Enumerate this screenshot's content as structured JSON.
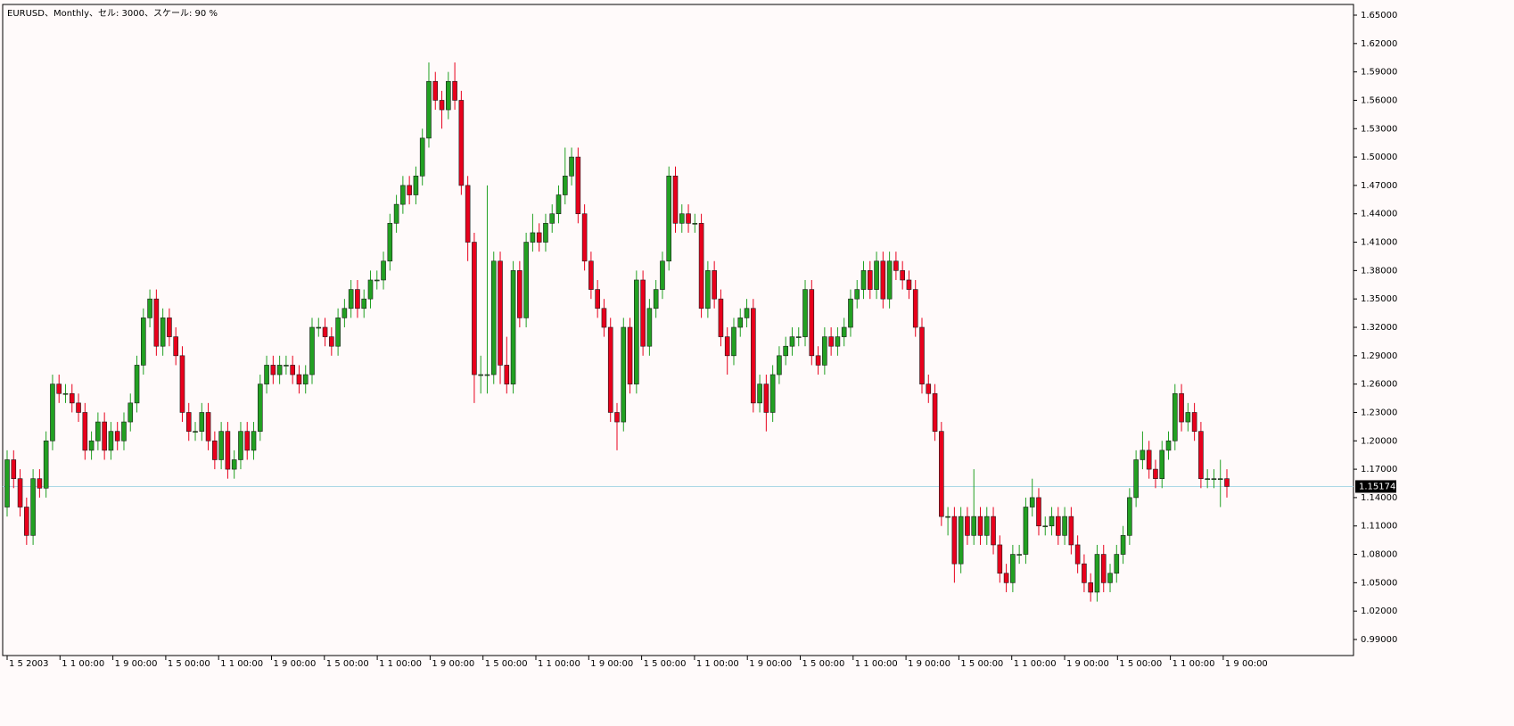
{
  "chart_data": {
    "type": "candlestick",
    "title": "EURUSD、Monthly、セル: 3000、スケール: 90 %",
    "bull_color": "#22a022",
    "bear_color": "#e8001c",
    "current_price": 1.15174,
    "current_price_label": "1.15174",
    "ylim": [
      0.99,
      1.65
    ],
    "yticks": [
      {
        "value": 0.99,
        "label": "0.99000"
      },
      {
        "value": 1.02,
        "label": "1.02000"
      },
      {
        "value": 1.05,
        "label": "1.05000"
      },
      {
        "value": 1.08,
        "label": "1.08000"
      },
      {
        "value": 1.11,
        "label": "1.11000"
      },
      {
        "value": 1.14,
        "label": "1.14000"
      },
      {
        "value": 1.17,
        "label": "1.17000"
      },
      {
        "value": 1.2,
        "label": "1.20000"
      },
      {
        "value": 1.23,
        "label": "1.23000"
      },
      {
        "value": 1.26,
        "label": "1.26000"
      },
      {
        "value": 1.29,
        "label": "1.29000"
      },
      {
        "value": 1.32,
        "label": "1.32000"
      },
      {
        "value": 1.35,
        "label": "1.35000"
      },
      {
        "value": 1.38,
        "label": "1.38000"
      },
      {
        "value": 1.41,
        "label": "1.41000"
      },
      {
        "value": 1.44,
        "label": "1.44000"
      },
      {
        "value": 1.47,
        "label": "1.47000"
      },
      {
        "value": 1.5,
        "label": "1.50000"
      },
      {
        "value": 1.53,
        "label": "1.53000"
      },
      {
        "value": 1.56,
        "label": "1.56000"
      },
      {
        "value": 1.59,
        "label": "1.59000"
      },
      {
        "value": 1.62,
        "label": "1.62000"
      },
      {
        "value": 1.65,
        "label": "1.65000"
      }
    ],
    "xlabels": [
      "1 5 2003",
      "1 1 00:00",
      "1 9 00:00",
      "1 5 00:00",
      "1 1 00:00",
      "1 9 00:00",
      "1 5 00:00",
      "1 1 00:00",
      "1 9 00:00",
      "1 5 00:00",
      "1 1 00:00",
      "1 9 00:00",
      "1 5 00:00",
      "1 1 00:00",
      "1 9 00:00",
      "1 5 00:00",
      "1 1 00:00",
      "1 9 00:00",
      "1 5 00:00",
      "1 1 00:00",
      "1 9 00:00",
      "1 5 00:00",
      "1 1 00:00",
      "1 9 00:00"
    ],
    "open": [
      1.13,
      1.18,
      1.16,
      1.13,
      1.1,
      1.16,
      1.15,
      1.2,
      1.26,
      1.25,
      1.25,
      1.24,
      1.23,
      1.19,
      1.2,
      1.22,
      1.19,
      1.21,
      1.2,
      1.22,
      1.24,
      1.28,
      1.33,
      1.35,
      1.3,
      1.33,
      1.31,
      1.29,
      1.23,
      1.21,
      1.21,
      1.23,
      1.2,
      1.18,
      1.21,
      1.17,
      1.18,
      1.21,
      1.19,
      1.21,
      1.26,
      1.28,
      1.27,
      1.28,
      1.28,
      1.27,
      1.26,
      1.27,
      1.32,
      1.32,
      1.31,
      1.3,
      1.33,
      1.34,
      1.36,
      1.34,
      1.35,
      1.37,
      1.37,
      1.39,
      1.43,
      1.45,
      1.47,
      1.46,
      1.48,
      1.52,
      1.58,
      1.56,
      1.55,
      1.58,
      1.56,
      1.47,
      1.41,
      1.27,
      1.27,
      1.27,
      1.39,
      1.28,
      1.26,
      1.38,
      1.33,
      1.41,
      1.42,
      1.41,
      1.43,
      1.44,
      1.46,
      1.48,
      1.5,
      1.44,
      1.39,
      1.36,
      1.34,
      1.32,
      1.23,
      1.22,
      1.32,
      1.26,
      1.37,
      1.3,
      1.34,
      1.36,
      1.39,
      1.48,
      1.43,
      1.44,
      1.43,
      1.43,
      1.34,
      1.38,
      1.35,
      1.31,
      1.29,
      1.32,
      1.33,
      1.34,
      1.24,
      1.26,
      1.23,
      1.27,
      1.29,
      1.3,
      1.31,
      1.31,
      1.36,
      1.29,
      1.28,
      1.31,
      1.3,
      1.31,
      1.32,
      1.35,
      1.36,
      1.38,
      1.36,
      1.39,
      1.35,
      1.39,
      1.38,
      1.37,
      1.36,
      1.32,
      1.26,
      1.25,
      1.21,
      1.12,
      1.12,
      1.07,
      1.12,
      1.1,
      1.12,
      1.1,
      1.12,
      1.09,
      1.06,
      1.05,
      1.08,
      1.08,
      1.13,
      1.14,
      1.11,
      1.11,
      1.12,
      1.1,
      1.12,
      1.09,
      1.07,
      1.05,
      1.04,
      1.08,
      1.05,
      1.06,
      1.08,
      1.1,
      1.14,
      1.18,
      1.19,
      1.17,
      1.16,
      1.19,
      1.2,
      1.25,
      1.22,
      1.23,
      1.21,
      1.16,
      1.16,
      1.16,
      1.16
    ],
    "high": [
      1.19,
      1.19,
      1.17,
      1.14,
      1.17,
      1.17,
      1.21,
      1.27,
      1.27,
      1.26,
      1.26,
      1.25,
      1.24,
      1.21,
      1.23,
      1.23,
      1.22,
      1.22,
      1.23,
      1.25,
      1.29,
      1.34,
      1.36,
      1.36,
      1.34,
      1.34,
      1.32,
      1.3,
      1.24,
      1.22,
      1.24,
      1.24,
      1.21,
      1.22,
      1.22,
      1.19,
      1.22,
      1.22,
      1.22,
      1.27,
      1.29,
      1.29,
      1.29,
      1.29,
      1.29,
      1.28,
      1.28,
      1.33,
      1.33,
      1.33,
      1.32,
      1.34,
      1.35,
      1.37,
      1.37,
      1.36,
      1.38,
      1.38,
      1.4,
      1.44,
      1.46,
      1.48,
      1.48,
      1.49,
      1.53,
      1.6,
      1.59,
      1.57,
      1.59,
      1.6,
      1.57,
      1.48,
      1.42,
      1.29,
      1.47,
      1.4,
      1.4,
      1.31,
      1.39,
      1.39,
      1.42,
      1.44,
      1.43,
      1.44,
      1.45,
      1.47,
      1.51,
      1.51,
      1.51,
      1.45,
      1.4,
      1.37,
      1.35,
      1.33,
      1.24,
      1.33,
      1.33,
      1.38,
      1.38,
      1.35,
      1.37,
      1.4,
      1.49,
      1.49,
      1.45,
      1.45,
      1.44,
      1.44,
      1.39,
      1.39,
      1.36,
      1.32,
      1.33,
      1.34,
      1.35,
      1.35,
      1.27,
      1.27,
      1.28,
      1.3,
      1.31,
      1.32,
      1.32,
      1.37,
      1.37,
      1.3,
      1.32,
      1.32,
      1.32,
      1.33,
      1.36,
      1.37,
      1.39,
      1.39,
      1.4,
      1.4,
      1.4,
      1.4,
      1.39,
      1.38,
      1.37,
      1.33,
      1.27,
      1.26,
      1.22,
      1.13,
      1.13,
      1.13,
      1.13,
      1.17,
      1.13,
      1.13,
      1.13,
      1.1,
      1.07,
      1.09,
      1.09,
      1.14,
      1.16,
      1.15,
      1.12,
      1.13,
      1.13,
      1.13,
      1.13,
      1.1,
      1.08,
      1.06,
      1.09,
      1.09,
      1.07,
      1.09,
      1.11,
      1.15,
      1.19,
      1.21,
      1.2,
      1.18,
      1.2,
      1.21,
      1.26,
      1.26,
      1.24,
      1.24,
      1.22,
      1.17,
      1.17,
      1.18,
      1.17
    ],
    "low": [
      1.12,
      1.15,
      1.12,
      1.09,
      1.09,
      1.14,
      1.14,
      1.19,
      1.24,
      1.24,
      1.23,
      1.22,
      1.18,
      1.18,
      1.19,
      1.18,
      1.18,
      1.19,
      1.19,
      1.21,
      1.23,
      1.27,
      1.32,
      1.29,
      1.29,
      1.3,
      1.28,
      1.22,
      1.2,
      1.2,
      1.2,
      1.19,
      1.17,
      1.17,
      1.16,
      1.16,
      1.17,
      1.18,
      1.18,
      1.2,
      1.25,
      1.26,
      1.26,
      1.27,
      1.26,
      1.25,
      1.25,
      1.26,
      1.31,
      1.3,
      1.29,
      1.29,
      1.32,
      1.33,
      1.33,
      1.33,
      1.34,
      1.36,
      1.36,
      1.38,
      1.42,
      1.44,
      1.45,
      1.45,
      1.47,
      1.51,
      1.55,
      1.53,
      1.54,
      1.55,
      1.46,
      1.39,
      1.24,
      1.25,
      1.25,
      1.26,
      1.26,
      1.25,
      1.25,
      1.32,
      1.32,
      1.4,
      1.4,
      1.4,
      1.42,
      1.43,
      1.45,
      1.47,
      1.43,
      1.38,
      1.35,
      1.33,
      1.31,
      1.22,
      1.19,
      1.21,
      1.25,
      1.25,
      1.29,
      1.29,
      1.33,
      1.35,
      1.38,
      1.42,
      1.42,
      1.42,
      1.42,
      1.33,
      1.33,
      1.34,
      1.3,
      1.27,
      1.28,
      1.31,
      1.32,
      1.23,
      1.23,
      1.21,
      1.22,
      1.26,
      1.28,
      1.29,
      1.3,
      1.3,
      1.28,
      1.27,
      1.27,
      1.29,
      1.29,
      1.3,
      1.31,
      1.34,
      1.35,
      1.35,
      1.35,
      1.34,
      1.34,
      1.37,
      1.36,
      1.35,
      1.31,
      1.25,
      1.24,
      1.2,
      1.11,
      1.1,
      1.05,
      1.06,
      1.09,
      1.09,
      1.09,
      1.09,
      1.08,
      1.05,
      1.04,
      1.04,
      1.07,
      1.07,
      1.12,
      1.1,
      1.1,
      1.1,
      1.09,
      1.09,
      1.08,
      1.06,
      1.04,
      1.03,
      1.03,
      1.04,
      1.04,
      1.05,
      1.07,
      1.09,
      1.13,
      1.17,
      1.16,
      1.15,
      1.15,
      1.18,
      1.19,
      1.21,
      1.21,
      1.2,
      1.15,
      1.15,
      1.15,
      1.13,
      1.14
    ],
    "close": [
      1.18,
      1.16,
      1.13,
      1.1,
      1.16,
      1.15,
      1.2,
      1.26,
      1.25,
      1.25,
      1.24,
      1.23,
      1.19,
      1.2,
      1.22,
      1.19,
      1.21,
      1.2,
      1.22,
      1.24,
      1.28,
      1.33,
      1.35,
      1.3,
      1.33,
      1.31,
      1.29,
      1.23,
      1.21,
      1.21,
      1.23,
      1.2,
      1.18,
      1.21,
      1.17,
      1.18,
      1.21,
      1.19,
      1.21,
      1.26,
      1.28,
      1.27,
      1.28,
      1.28,
      1.27,
      1.26,
      1.27,
      1.32,
      1.32,
      1.31,
      1.3,
      1.33,
      1.34,
      1.36,
      1.34,
      1.35,
      1.37,
      1.37,
      1.39,
      1.43,
      1.45,
      1.47,
      1.46,
      1.48,
      1.52,
      1.58,
      1.56,
      1.55,
      1.58,
      1.56,
      1.47,
      1.41,
      1.27,
      1.27,
      1.27,
      1.39,
      1.28,
      1.26,
      1.38,
      1.33,
      1.41,
      1.42,
      1.41,
      1.43,
      1.44,
      1.46,
      1.48,
      1.5,
      1.44,
      1.39,
      1.36,
      1.34,
      1.32,
      1.23,
      1.22,
      1.32,
      1.26,
      1.37,
      1.3,
      1.34,
      1.36,
      1.39,
      1.48,
      1.43,
      1.44,
      1.43,
      1.43,
      1.34,
      1.38,
      1.35,
      1.31,
      1.29,
      1.32,
      1.33,
      1.34,
      1.24,
      1.26,
      1.23,
      1.27,
      1.29,
      1.3,
      1.31,
      1.31,
      1.36,
      1.29,
      1.28,
      1.31,
      1.3,
      1.31,
      1.32,
      1.35,
      1.36,
      1.38,
      1.36,
      1.39,
      1.35,
      1.39,
      1.38,
      1.37,
      1.36,
      1.32,
      1.26,
      1.25,
      1.21,
      1.12,
      1.12,
      1.07,
      1.12,
      1.1,
      1.12,
      1.1,
      1.12,
      1.09,
      1.06,
      1.05,
      1.08,
      1.08,
      1.13,
      1.14,
      1.11,
      1.11,
      1.12,
      1.1,
      1.12,
      1.09,
      1.07,
      1.05,
      1.04,
      1.08,
      1.05,
      1.06,
      1.08,
      1.1,
      1.14,
      1.18,
      1.19,
      1.17,
      1.16,
      1.19,
      1.2,
      1.25,
      1.22,
      1.23,
      1.21,
      1.16,
      1.16,
      1.16,
      1.16,
      1.15174
    ]
  }
}
